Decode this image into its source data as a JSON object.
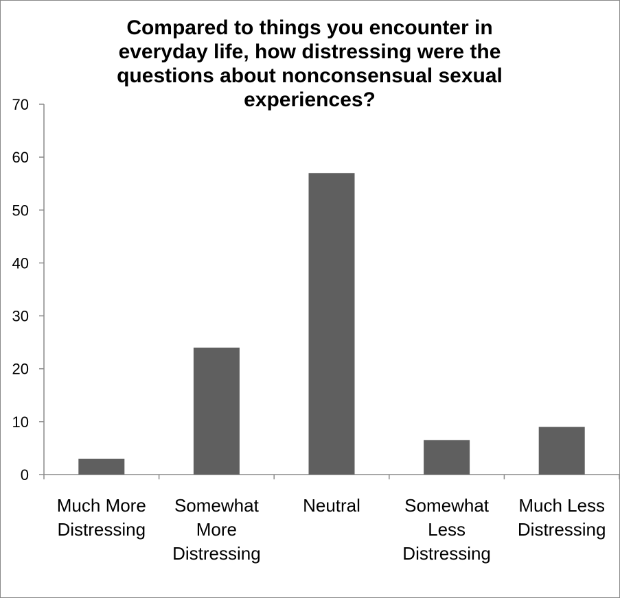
{
  "chart_data": {
    "type": "bar",
    "title_lines": [
      "Compared to things you encounter in",
      "everyday life, how distressing were the",
      "questions about nonconsensual sexual",
      "experiences?"
    ],
    "categories": [
      [
        "Much More",
        "Distressing"
      ],
      [
        "Somewhat",
        "More",
        "Distressing"
      ],
      [
        "Neutral"
      ],
      [
        "Somewhat",
        "Less",
        "Distressing"
      ],
      [
        "Much Less",
        "Distressing"
      ]
    ],
    "values": [
      3,
      24,
      57,
      6.5,
      9
    ],
    "ylim": [
      0,
      70
    ],
    "yticks": [
      0,
      10,
      20,
      30,
      40,
      50,
      60,
      70
    ],
    "bar_color": "#5f5f5f",
    "grid": false,
    "legend": "none"
  }
}
